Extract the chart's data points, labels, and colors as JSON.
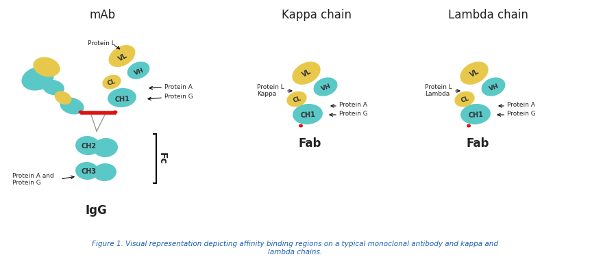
{
  "bg_color": "#ffffff",
  "teal": "#5BC8C8",
  "yellow": "#E8C84A",
  "red": "#dd1111",
  "text_color": "#222222",
  "blue_caption": "#1a5fb4",
  "fig_caption": "Figure 1. Visual representation depicting affinity binding regions on a typical monoclonal antibody and kappa and\nlambda chains.",
  "mab_title": "mAb",
  "kappa_title": "Kappa chain",
  "lambda_title": "Lambda chain",
  "igg_label": "IgG",
  "fc_label": "Fc",
  "fab_label": "Fab"
}
